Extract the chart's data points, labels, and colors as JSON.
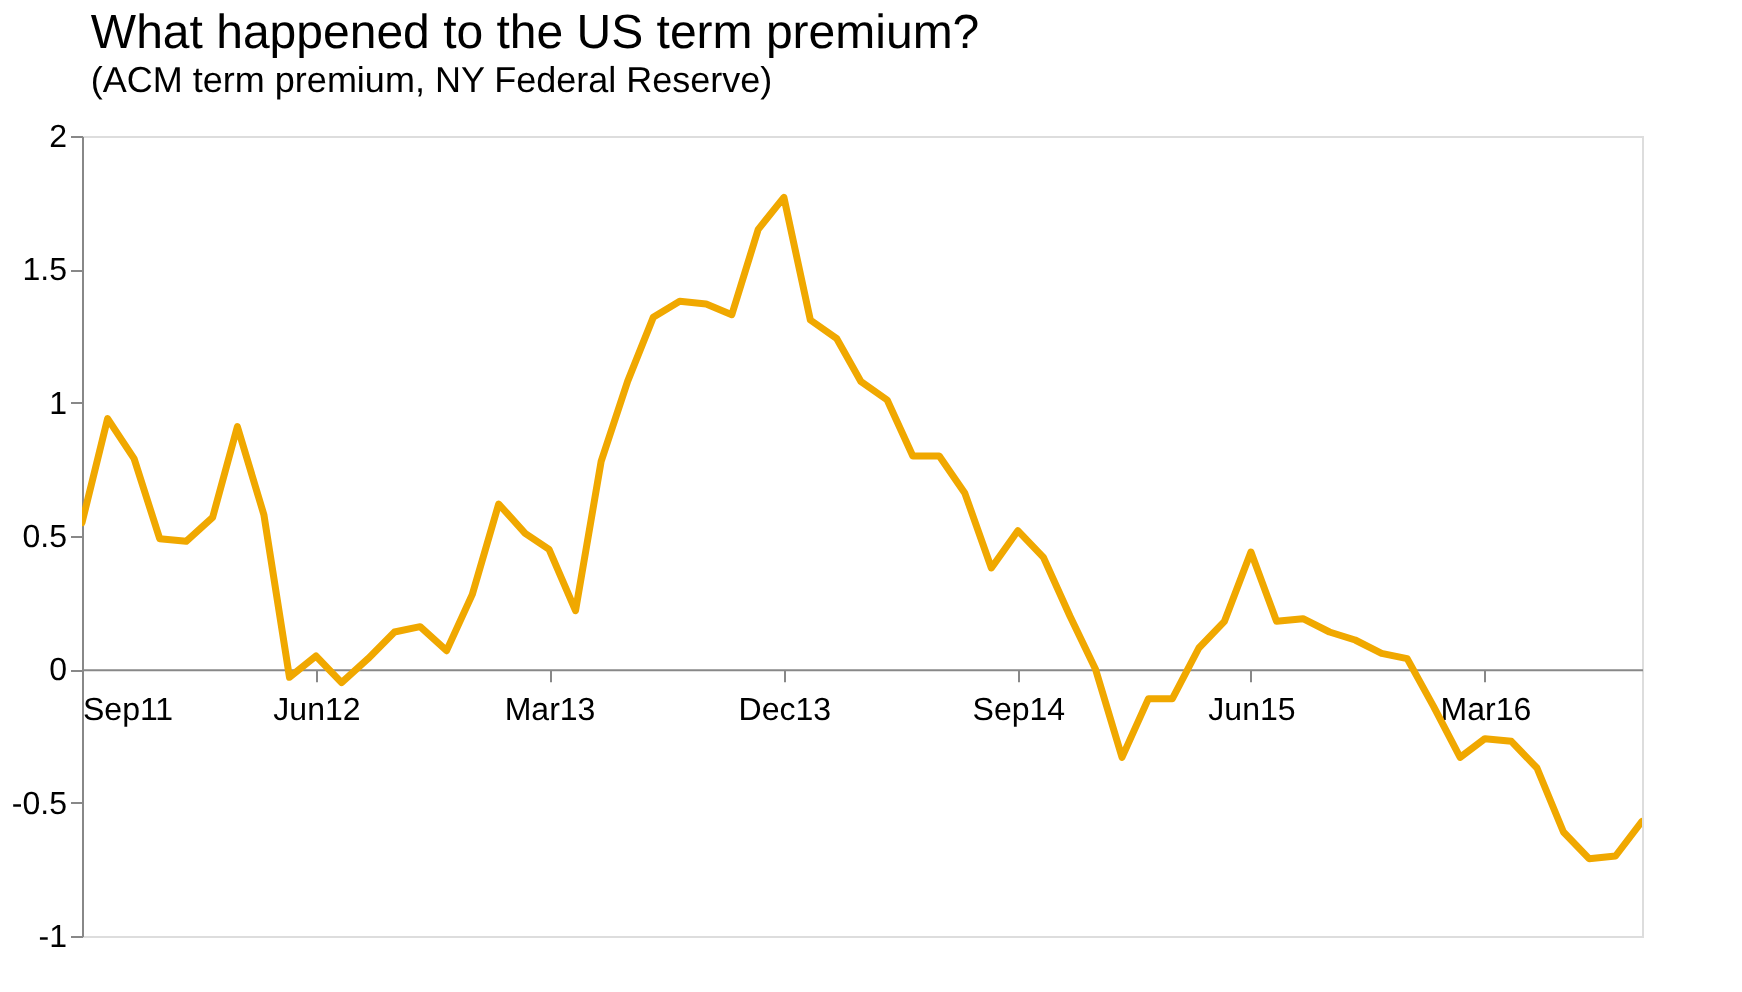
{
  "chart_data": {
    "type": "line",
    "title": "What happened to the US term premium?",
    "subtitle": "(ACM term premium, NY Federal Reserve)",
    "x": [
      "2011-09",
      "2011-10",
      "2011-11",
      "2011-12",
      "2012-01",
      "2012-02",
      "2012-03",
      "2012-04",
      "2012-05",
      "2012-06",
      "2012-07",
      "2012-08",
      "2012-09",
      "2012-10",
      "2012-11",
      "2012-12",
      "2013-01",
      "2013-02",
      "2013-03",
      "2013-04",
      "2013-05",
      "2013-06",
      "2013-07",
      "2013-08",
      "2013-09",
      "2013-10",
      "2013-11",
      "2013-12",
      "2014-01",
      "2014-02",
      "2014-03",
      "2014-04",
      "2014-05",
      "2014-06",
      "2014-07",
      "2014-08",
      "2014-09",
      "2014-10",
      "2014-11",
      "2014-12",
      "2015-01",
      "2015-02",
      "2015-03",
      "2015-04",
      "2015-05",
      "2015-06",
      "2015-07",
      "2015-08",
      "2015-09",
      "2015-10",
      "2015-11",
      "2015-12",
      "2016-01",
      "2016-02",
      "2016-03",
      "2016-04",
      "2016-05",
      "2016-06",
      "2016-07",
      "2016-08",
      "2016-09"
    ],
    "series": [
      {
        "color": "#f0a800",
        "values": [
          0.55,
          0.94,
          0.79,
          0.49,
          0.48,
          0.57,
          0.91,
          0.58,
          -0.03,
          0.05,
          -0.05,
          0.04,
          0.14,
          0.16,
          0.07,
          0.28,
          0.62,
          0.51,
          0.45,
          0.22,
          0.78,
          1.08,
          1.32,
          1.38,
          1.37,
          1.33,
          1.65,
          1.77,
          1.31,
          1.24,
          1.08,
          1.01,
          0.8,
          0.8,
          0.66,
          0.38,
          0.52,
          0.42,
          0.2,
          0.0,
          -0.33,
          -0.11,
          -0.11,
          0.08,
          0.18,
          0.44,
          0.18,
          0.19,
          0.14,
          0.11,
          0.06,
          0.04,
          -0.14,
          -0.33,
          -0.26,
          -0.27,
          -0.37,
          -0.61,
          -0.71,
          -0.7,
          -0.57
        ]
      }
    ],
    "xlim": [
      "2011-09",
      "2016-09"
    ],
    "xticks": [
      {
        "value": "2011-09",
        "label": "Sep11"
      },
      {
        "value": "2012-06",
        "label": "Jun12"
      },
      {
        "value": "2013-03",
        "label": "Mar13"
      },
      {
        "value": "2013-12",
        "label": "Dec13"
      },
      {
        "value": "2014-09",
        "label": "Sep14"
      },
      {
        "value": "2015-06",
        "label": "Jun15"
      },
      {
        "value": "2016-03",
        "label": "Mar16"
      }
    ],
    "ylim": [
      -1,
      2
    ],
    "yticks": [
      -1,
      -0.5,
      0,
      0.5,
      1,
      1.5,
      2
    ],
    "grid": false,
    "marker": "none",
    "line_style": "solid"
  }
}
